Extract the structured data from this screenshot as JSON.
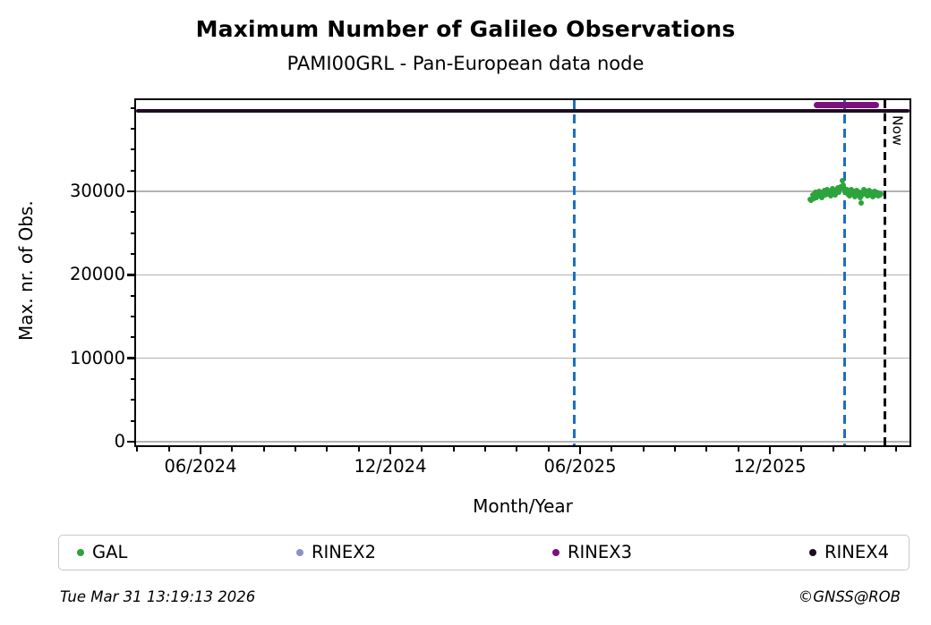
{
  "header": {
    "title": "Maximum Number of Galileo Observations",
    "subtitle": "PAMI00GRL - Pan-European data node"
  },
  "axes": {
    "x_label": "Month/Year",
    "y_label": "Max. nr. of Obs."
  },
  "footer": {
    "timestamp": "Tue Mar 31 13:19:13 2026",
    "credit": "©GNSS@ROB"
  },
  "chart_data": {
    "type": "scatter",
    "title": "Maximum Number of Galileo Observations",
    "subtitle": "PAMI00GRL - Pan-European data node",
    "xlabel": "Month/Year",
    "ylabel": "Max. nr. of Obs.",
    "x_axis": {
      "tick_labels": [
        "06/2024",
        "12/2024",
        "06/2025",
        "12/2025"
      ],
      "tick_months_from_06_2024": [
        0,
        6,
        12,
        18
      ],
      "minor_tick_interval_months": 1,
      "range_months_from_06_2024": [
        -2.05,
        22.45
      ],
      "grid": false
    },
    "y_axis": {
      "ticks": [
        0,
        10000,
        20000,
        30000
      ],
      "tick_labels": [
        "0",
        "10000",
        "20000",
        "30000"
      ],
      "minor_tick_interval": 2500,
      "range": [
        -650,
        41150
      ],
      "grid": true,
      "grid_color": "#b2b2b2"
    },
    "series": [
      {
        "name": "GAL",
        "color": "#2da33c",
        "marker": "dot",
        "points_note": "x = months after 06/2024, y = max nr of observations",
        "points": [
          [
            19.28,
            29000
          ],
          [
            19.31,
            28900
          ],
          [
            19.35,
            29600
          ],
          [
            19.38,
            29200
          ],
          [
            19.41,
            29500
          ],
          [
            19.45,
            29900
          ],
          [
            19.48,
            29300
          ],
          [
            19.51,
            29700
          ],
          [
            19.55,
            30000
          ],
          [
            19.58,
            29500
          ],
          [
            19.62,
            29800
          ],
          [
            19.65,
            29300
          ],
          [
            19.68,
            29900
          ],
          [
            19.72,
            30100
          ],
          [
            19.75,
            29600
          ],
          [
            19.78,
            29900
          ],
          [
            19.82,
            30200
          ],
          [
            19.85,
            29700
          ],
          [
            19.88,
            30000
          ],
          [
            19.92,
            29500
          ],
          [
            19.95,
            29900
          ],
          [
            19.98,
            30300
          ],
          [
            20.02,
            29800
          ],
          [
            20.05,
            30100
          ],
          [
            20.08,
            29600
          ],
          [
            20.12,
            30000
          ],
          [
            20.15,
            30400
          ],
          [
            20.18,
            29900
          ],
          [
            20.22,
            30200
          ],
          [
            20.25,
            30600
          ],
          [
            20.28,
            31300
          ],
          [
            20.32,
            30800
          ],
          [
            20.35,
            30300
          ],
          [
            20.38,
            29900
          ],
          [
            20.42,
            30200
          ],
          [
            20.45,
            29700
          ],
          [
            20.48,
            30000
          ],
          [
            20.52,
            29500
          ],
          [
            20.55,
            29900
          ],
          [
            20.58,
            30200
          ],
          [
            20.62,
            29700
          ],
          [
            20.65,
            30000
          ],
          [
            20.68,
            29400
          ],
          [
            20.72,
            29800
          ],
          [
            20.75,
            30100
          ],
          [
            20.78,
            29600
          ],
          [
            20.82,
            29900
          ],
          [
            20.85,
            29300
          ],
          [
            20.88,
            28600
          ],
          [
            20.92,
            29600
          ],
          [
            20.95,
            29900
          ],
          [
            20.98,
            30200
          ],
          [
            21.02,
            29700
          ],
          [
            21.05,
            30000
          ],
          [
            21.08,
            29500
          ],
          [
            21.12,
            29800
          ],
          [
            21.15,
            30100
          ],
          [
            21.18,
            29600
          ],
          [
            21.22,
            29900
          ],
          [
            21.25,
            29400
          ],
          [
            21.28,
            29700
          ],
          [
            21.32,
            30000
          ],
          [
            21.35,
            29600
          ],
          [
            21.38,
            29900
          ],
          [
            21.42,
            29500
          ],
          [
            21.45,
            29800
          ],
          [
            21.48,
            29600
          ],
          [
            21.52,
            29700
          ]
        ]
      },
      {
        "name": "RINEX2",
        "color": "#8f8fc9",
        "marker": "dot",
        "points": []
      },
      {
        "name": "RINEX3",
        "color": "#7b117b",
        "type": "segment",
        "level": 40400,
        "start_month": 19.4,
        "end_month": 21.45
      },
      {
        "name": "RINEX4",
        "color": "#1f0c24",
        "type": "segment",
        "level": 39700,
        "start_month": -2.05,
        "end_month": 22.45
      }
    ],
    "vlines": [
      {
        "month": 11.83,
        "approx_date": "06/2025",
        "color": "#1a6fc4",
        "style": "dashed"
      },
      {
        "month": 20.35,
        "approx_date": "02/2026",
        "color": "#1a6fc4",
        "style": "dashed"
      }
    ],
    "now_line": {
      "month": 21.63,
      "label": "Now",
      "color": "#000000",
      "style": "dashed"
    },
    "legend": {
      "position": "bottom",
      "items": [
        {
          "label": "GAL",
          "color": "#2da33c"
        },
        {
          "label": "RINEX2",
          "color": "#8f8fc9"
        },
        {
          "label": "RINEX3",
          "color": "#7b117b"
        },
        {
          "label": "RINEX4",
          "color": "#1f0c24"
        }
      ]
    }
  }
}
